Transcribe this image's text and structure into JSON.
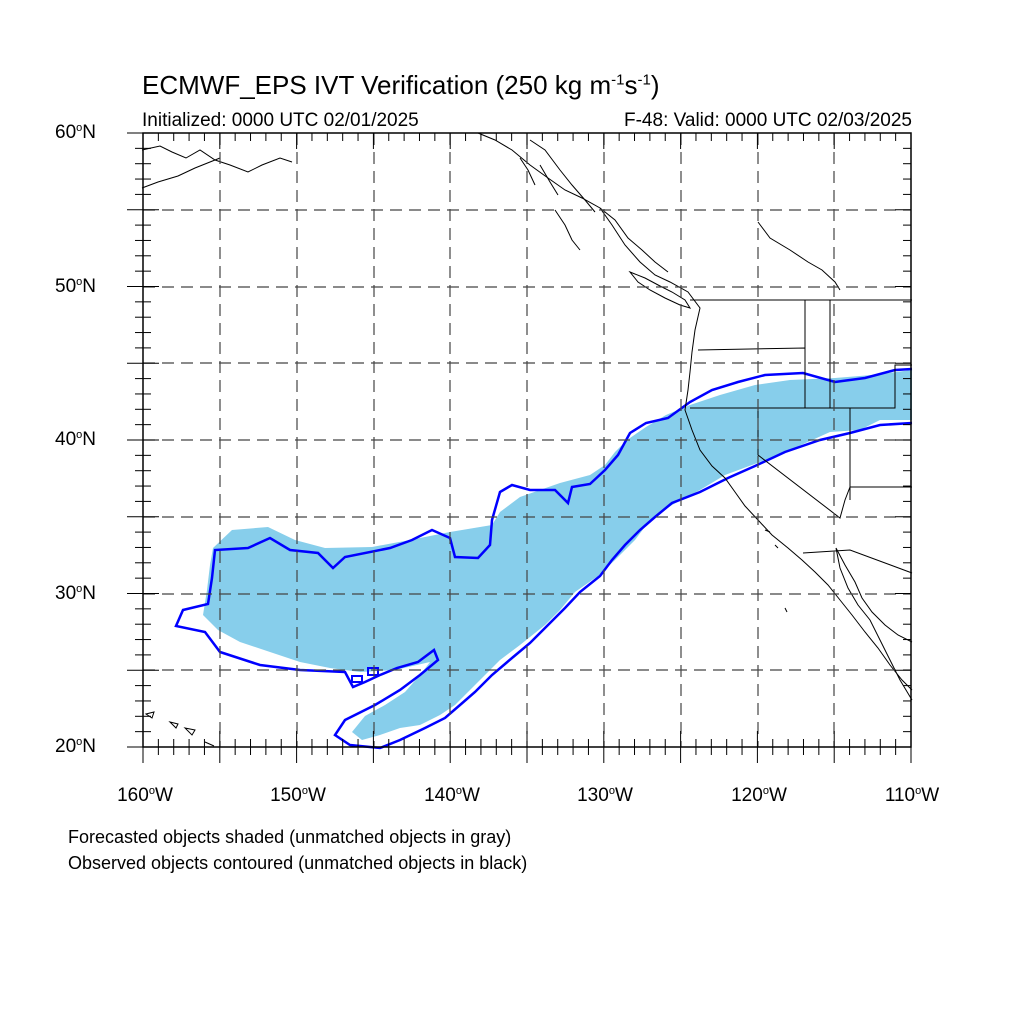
{
  "title": {
    "main": "ECMWF_EPS IVT Verification (250 kg m",
    "sup1": "-1",
    "mid": "s",
    "sup2": "-1",
    "end": ")"
  },
  "subtitle_left": "Initialized: 0000 UTC 02/01/2025",
  "subtitle_right": "F-48: Valid: 0000 UTC 02/03/2025",
  "axes": {
    "lat_labels": [
      {
        "num": "60",
        "hemi": "N"
      },
      {
        "num": "50",
        "hemi": "N"
      },
      {
        "num": "40",
        "hemi": "N"
      },
      {
        "num": "30",
        "hemi": "N"
      },
      {
        "num": "20",
        "hemi": "N"
      }
    ],
    "lon_labels": [
      {
        "num": "160",
        "hemi": "W"
      },
      {
        "num": "150",
        "hemi": "W"
      },
      {
        "num": "140",
        "hemi": "W"
      },
      {
        "num": "130",
        "hemi": "W"
      },
      {
        "num": "120",
        "hemi": "W"
      },
      {
        "num": "110",
        "hemi": "W"
      }
    ],
    "lon_range": [
      -160,
      -110
    ],
    "lat_range": [
      20,
      60
    ]
  },
  "legend": {
    "line1": "Forecasted objects shaded (unmatched objects in gray)",
    "line2": "Observed objects contoured (unmatched objects in black)"
  },
  "colors": {
    "forecast_fill": "#87ceeb",
    "observed_contour": "#0000ff",
    "coast": "#000000",
    "grid": "#444444"
  }
}
